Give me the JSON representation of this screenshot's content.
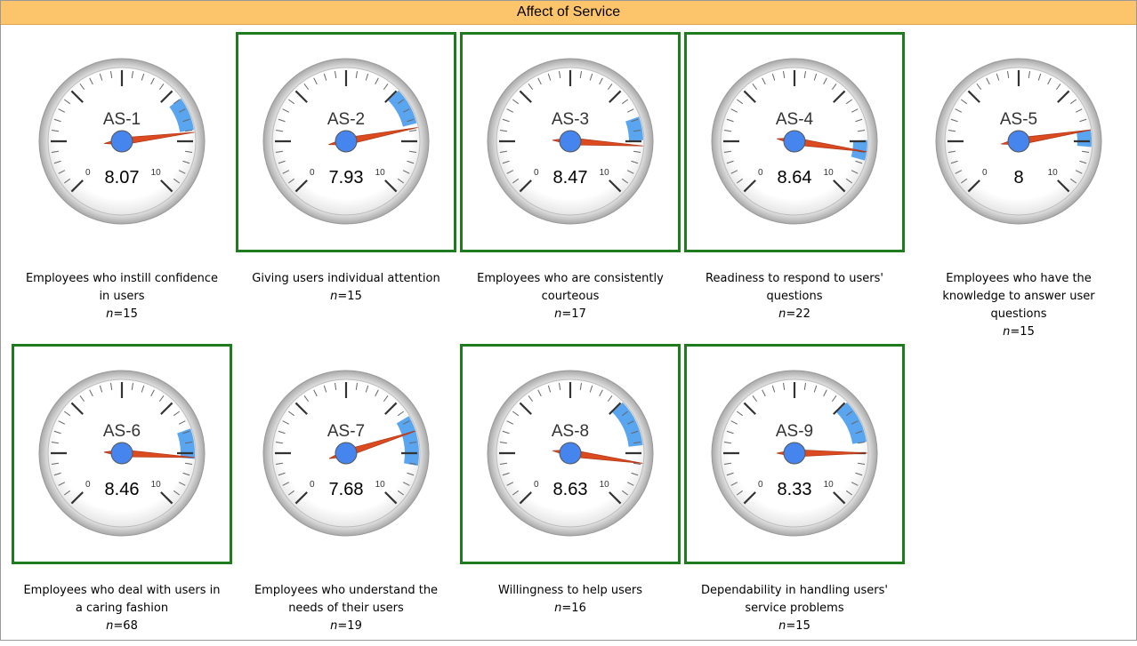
{
  "title": "Affect of Service",
  "n_symbol": "n",
  "n_sep": "=",
  "scale": {
    "min": 0,
    "max": 10,
    "major_ticks": 7,
    "minor_ticks": 5
  },
  "gauges": [
    {
      "label": "AS-1",
      "value": 8.07,
      "band": [
        7.0,
        8.0
      ],
      "description": "Employees who instill confidence in users",
      "n": 15,
      "highlighted": false
    },
    {
      "label": "AS-2",
      "value": 7.93,
      "band": [
        6.7,
        7.8
      ],
      "description": "Giving users individual attention",
      "n": 15,
      "highlighted": true
    },
    {
      "label": "AS-3",
      "value": 8.47,
      "band": [
        7.6,
        8.3
      ],
      "description": "Employees who are consistently courteous",
      "n": 17,
      "highlighted": true
    },
    {
      "label": "AS-4",
      "value": 8.64,
      "band": [
        8.3,
        8.9
      ],
      "description": "Readiness to respond to users' questions",
      "n": 22,
      "highlighted": true
    },
    {
      "label": "AS-5",
      "value": 8,
      "band": [
        8.0,
        8.5
      ],
      "description": "Employees who have the knowledge to answer user questions",
      "n": 15,
      "highlighted": false
    },
    {
      "label": "AS-6",
      "value": 8.46,
      "band": [
        7.6,
        8.5
      ],
      "description": "Employees who deal with users in a caring fashion",
      "n": 68,
      "highlighted": true
    },
    {
      "label": "AS-7",
      "value": 7.68,
      "band": [
        7.2,
        8.7
      ],
      "description": "Employees who understand the needs of their users",
      "n": 19,
      "highlighted": false
    },
    {
      "label": "AS-8",
      "value": 8.63,
      "band": [
        6.7,
        8.1
      ],
      "description": "Willingness to help users",
      "n": 16,
      "highlighted": true
    },
    {
      "label": "AS-9",
      "value": 8.33,
      "band": [
        6.7,
        8.0
      ],
      "description": "Dependability in handling users' service problems",
      "n": 15,
      "highlighted": true
    }
  ]
}
